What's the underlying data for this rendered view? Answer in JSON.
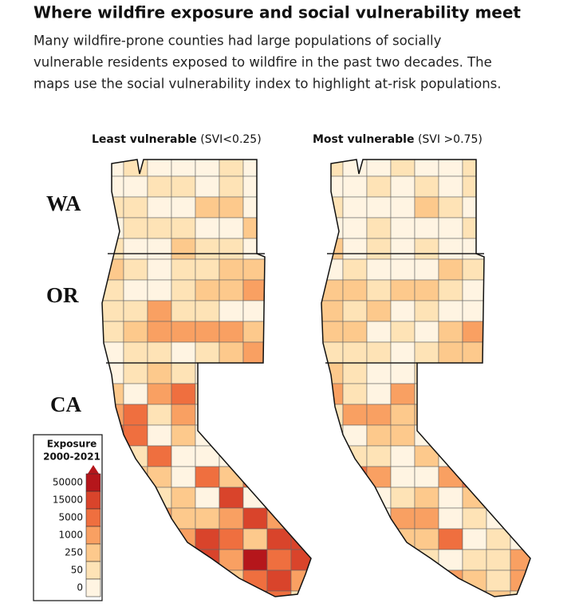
{
  "title": "Where wildfire exposure and social vulnerability meet",
  "subtitle": [
    "Many wildfire-prone counties had large populations of socially",
    "vulnerable residents exposed to wildfire in the past two decades. The",
    "maps use the social vulnerability index to highlight at-risk populations."
  ],
  "maps": [
    {
      "heading_bold": "Least vulnerable",
      "heading_note": "(SVI<0.25)"
    },
    {
      "heading_bold": "Most vulnerable",
      "heading_note": "(SVI >0.75)"
    }
  ],
  "state_labels": [
    "WA",
    "OR",
    "CA"
  ],
  "legend": {
    "title_lines": [
      "Exposure",
      "2000-2021"
    ],
    "ticks": [
      50000,
      15000,
      5000,
      1000,
      250,
      50,
      0
    ],
    "colors": [
      "#b5161b",
      "#d9442b",
      "#ef6f3f",
      "#f9a062",
      "#fdc98c",
      "#fee3b6",
      "#fff4e2"
    ]
  }
}
